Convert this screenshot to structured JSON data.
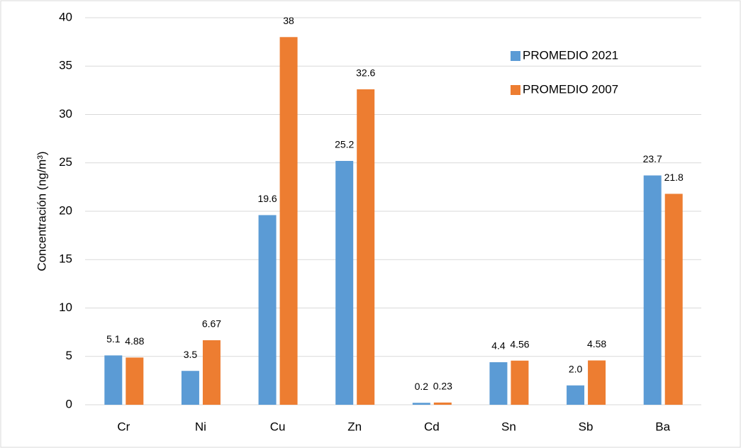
{
  "chart_data": {
    "type": "bar",
    "y_label": "Concentración (ng/m³)",
    "categories": [
      "Cr",
      "Ni",
      "Cu",
      "Zn",
      "Cd",
      "Sn",
      "Sb",
      "Ba"
    ],
    "series": [
      {
        "name": "PROMEDIO 2021",
        "color": "#5b9bd5",
        "values": [
          5.1,
          3.5,
          19.6,
          25.2,
          0.2,
          4.4,
          2.0,
          23.7
        ],
        "value_labels": [
          "5.1",
          "3.5",
          "19.6",
          "25.2",
          "0.2",
          "4.4",
          "2.0",
          "23.7"
        ]
      },
      {
        "name": "PROMEDIO 2007",
        "color": "#ed7d31",
        "values": [
          4.88,
          6.67,
          38,
          32.6,
          0.23,
          4.56,
          4.58,
          21.8
        ]
      }
    ],
    "ylim": [
      0,
      40
    ],
    "yticks": [
      0,
      5,
      10,
      15,
      20,
      25,
      30,
      35,
      40
    ],
    "grid": true,
    "legend": "upper right"
  }
}
